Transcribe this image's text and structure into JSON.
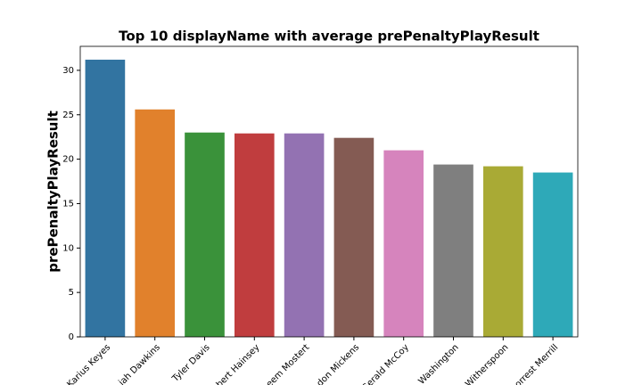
{
  "chart_data": {
    "type": "bar",
    "title": "Top 10 displayName with average prePenaltyPlayResult",
    "y_label": "prePenaltyPlayResult",
    "categories": [
      "Karius Keyes",
      "iah Dawkins",
      "Tyler Davis",
      "bert Hainsey",
      "eem Mostert",
      "don Mickens",
      "Gerald McCoy",
      "Washington",
      "Witherspoon",
      "orrest Merrill"
    ],
    "values": [
      31.2,
      25.6,
      23.0,
      22.9,
      22.9,
      22.4,
      21.0,
      19.4,
      19.2,
      18.5
    ],
    "colors": [
      "#3274a1",
      "#e1812c",
      "#3a923a",
      "#c03d3e",
      "#9372b2",
      "#845b53",
      "#d684bd",
      "#7f7f7f",
      "#a9aa35",
      "#2ea9b8"
    ],
    "ylim": [
      0,
      32.7
    ],
    "yticks": [
      0,
      5,
      10,
      15,
      20,
      25,
      30
    ],
    "grid": false
  }
}
